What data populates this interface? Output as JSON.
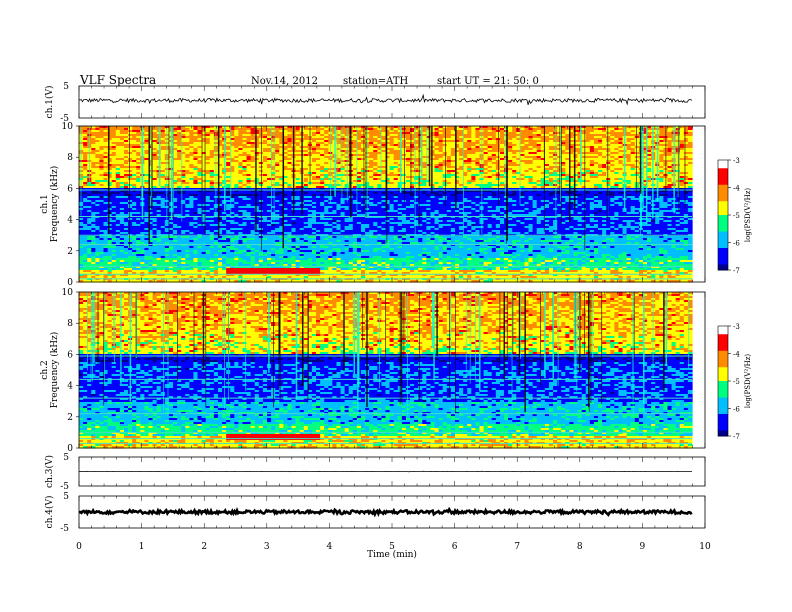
{
  "header": {
    "title": "VLF  Spectra",
    "date": "Nov.14, 2012",
    "station": "station=ATH",
    "start": "start  UT =   21: 50: 0"
  },
  "chart_data": [
    {
      "type": "line",
      "panel": "waveform",
      "ylabel": "ch.1(V)",
      "yticks": [
        "5",
        "-5"
      ],
      "ylim": [
        -5,
        5
      ],
      "description_values": {
        "baseline": 0.5,
        "noise_amplitude": 0.6
      },
      "xlim": [
        0,
        9.8
      ]
    },
    {
      "type": "heatmap",
      "panel": "spectrogram",
      "ylabel_top": "ch.1",
      "ylabel": "Frequency  (kHz)",
      "yticks": [
        "0",
        "2",
        "4",
        "6",
        "8",
        "10"
      ],
      "ylim": [
        0,
        10
      ],
      "colorbar": {
        "label": "log(PSD(V²/Hz)",
        "ticks": [
          "-3",
          "-4",
          "-5",
          "-6",
          "-7"
        ],
        "range": [
          -7,
          -3
        ],
        "colors": [
          "#00008b",
          "#0000ff",
          "#00bfff",
          "#00ff7f",
          "#ffff00",
          "#ff8c00",
          "#ff0000",
          "#ffffff"
        ]
      },
      "xlim": [
        0,
        9.8
      ]
    },
    {
      "type": "heatmap",
      "panel": "spectrogram",
      "ylabel_top": "ch.2",
      "ylabel": "Frequency  (kHz)",
      "yticks": [
        "0",
        "2",
        "4",
        "6",
        "8",
        "10"
      ],
      "ylim": [
        0,
        10
      ],
      "colorbar": {
        "label": "log(PSD(V²/Hz)",
        "ticks": [
          "-3",
          "-4",
          "-5",
          "-6",
          "-7"
        ],
        "range": [
          -7,
          -3
        ],
        "colors": [
          "#00008b",
          "#0000ff",
          "#00bfff",
          "#00ff7f",
          "#ffff00",
          "#ff8c00",
          "#ff0000",
          "#ffffff"
        ]
      },
      "xlim": [
        0,
        9.8
      ]
    },
    {
      "type": "line",
      "panel": "waveform",
      "ylabel": "ch.3(V)",
      "yticks": [
        "5",
        "-5"
      ],
      "ylim": [
        -5,
        5
      ],
      "description_values": {
        "baseline": 0.0,
        "noise_amplitude": 0.05
      },
      "xlim": [
        0,
        9.8
      ]
    },
    {
      "type": "line",
      "panel": "waveform",
      "ylabel": "ch.4(V)",
      "yticks": [
        "5",
        "-5"
      ],
      "ylim": [
        -5,
        5
      ],
      "description_values": {
        "baseline": 0.0,
        "noise_amplitude": 0.5
      },
      "xlim": [
        0,
        9.8
      ]
    }
  ],
  "xaxis": {
    "label": "Time  (min)",
    "ticks": [
      "0",
      "1",
      "2",
      "3",
      "4",
      "5",
      "6",
      "7",
      "8",
      "9",
      "10"
    ],
    "range": [
      0,
      10
    ]
  }
}
